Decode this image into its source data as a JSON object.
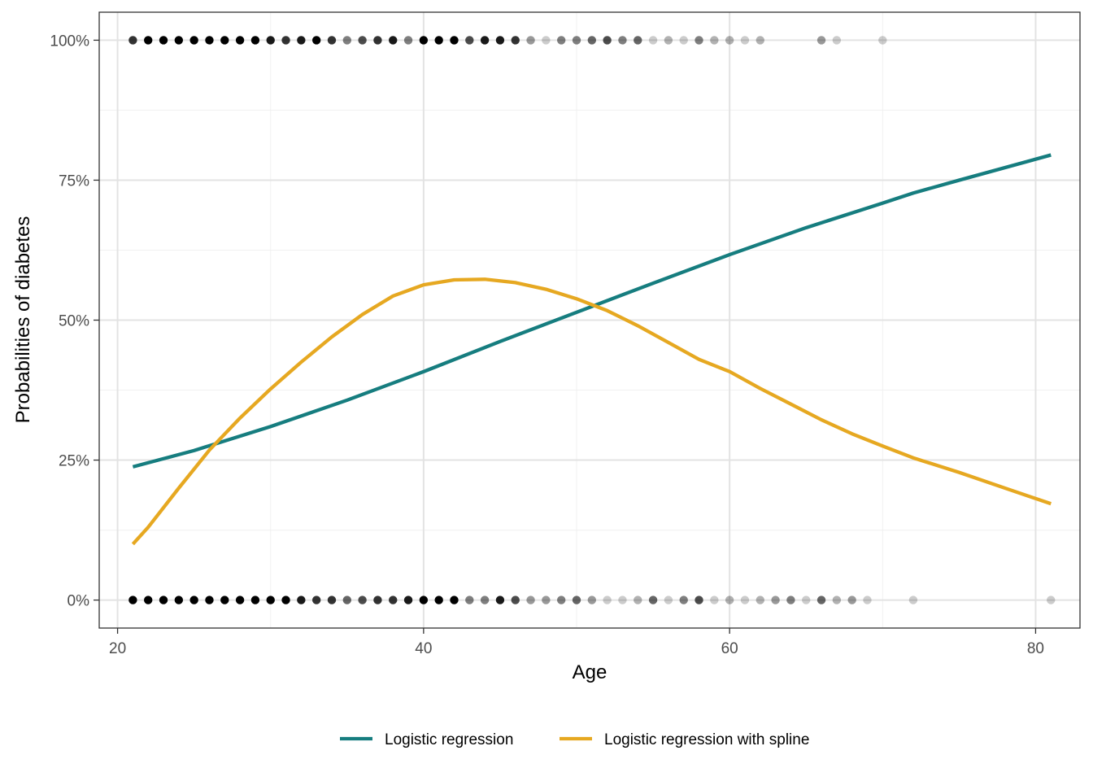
{
  "chart_data": {
    "type": "line",
    "title": "",
    "xlabel": "Age",
    "ylabel": "Probabilities of diabetes",
    "xlim": [
      18.8,
      82.9
    ],
    "ylim": [
      -0.05,
      1.05
    ],
    "x_ticks": [
      {
        "value": 20,
        "label": "20"
      },
      {
        "value": 40,
        "label": "40"
      },
      {
        "value": 60,
        "label": "60"
      },
      {
        "value": 80,
        "label": "80"
      }
    ],
    "x_minor_ticks": [
      30,
      50,
      70
    ],
    "y_ticks": [
      {
        "value": 0,
        "label": "0%"
      },
      {
        "value": 0.25,
        "label": "25%"
      },
      {
        "value": 0.5,
        "label": "50%"
      },
      {
        "value": 0.75,
        "label": "75%"
      },
      {
        "value": 1.0,
        "label": "100%"
      }
    ],
    "y_minor_ticks": [
      0.125,
      0.375,
      0.625,
      0.875
    ],
    "grid": true,
    "legend_position": "bottom",
    "series": [
      {
        "name": "Logistic regression",
        "color": "#167d7f",
        "x": [
          21,
          25,
          30,
          35,
          40,
          45,
          50,
          55,
          60,
          65,
          70,
          72,
          75,
          81
        ],
        "y": [
          0.238,
          0.267,
          0.31,
          0.357,
          0.408,
          0.462,
          0.514,
          0.566,
          0.617,
          0.665,
          0.709,
          0.727,
          0.75,
          0.795
        ]
      },
      {
        "name": "Logistic regression with spline",
        "color": "#e6a821",
        "x": [
          21,
          22,
          24,
          26,
          28,
          30,
          32,
          34,
          36,
          38,
          40,
          42,
          44,
          46,
          48,
          50,
          52,
          54,
          56,
          58,
          60,
          62,
          64,
          66,
          68,
          70,
          72,
          75,
          78,
          81
        ],
        "y": [
          0.1,
          0.13,
          0.2,
          0.268,
          0.325,
          0.377,
          0.425,
          0.47,
          0.51,
          0.543,
          0.563,
          0.572,
          0.573,
          0.567,
          0.555,
          0.538,
          0.517,
          0.49,
          0.46,
          0.43,
          0.408,
          0.378,
          0.35,
          0.322,
          0.297,
          0.275,
          0.254,
          0.228,
          0.2,
          0.172
        ]
      }
    ],
    "points_positive": {
      "y": 1,
      "color": "#000000",
      "x": [
        21,
        22,
        23,
        24,
        25,
        26,
        27,
        28,
        29,
        30,
        31,
        32,
        33,
        34,
        35,
        36,
        37,
        38,
        39,
        40,
        41,
        42,
        43,
        44,
        45,
        46,
        47,
        48,
        49,
        50,
        51,
        52,
        53,
        54,
        55,
        56,
        57,
        58,
        59,
        60,
        61,
        62,
        66,
        67,
        70
      ],
      "opacity": [
        0.8,
        1,
        1,
        1,
        1,
        1,
        1,
        1,
        1,
        0.9,
        0.8,
        0.9,
        1,
        0.8,
        0.5,
        0.7,
        0.8,
        0.9,
        0.5,
        1,
        1,
        1,
        0.7,
        0.9,
        0.9,
        0.8,
        0.4,
        0.2,
        0.5,
        0.5,
        0.6,
        0.7,
        0.5,
        0.6,
        0.2,
        0.3,
        0.2,
        0.5,
        0.3,
        0.3,
        0.2,
        0.3,
        0.4,
        0.2,
        0.2
      ]
    },
    "points_negative": {
      "y": 0,
      "color": "#000000",
      "x": [
        21,
        22,
        23,
        24,
        25,
        26,
        27,
        28,
        29,
        30,
        31,
        32,
        33,
        34,
        35,
        36,
        37,
        38,
        39,
        40,
        41,
        42,
        43,
        44,
        45,
        46,
        47,
        48,
        49,
        50,
        51,
        52,
        53,
        54,
        55,
        56,
        57,
        58,
        59,
        60,
        61,
        62,
        63,
        64,
        65,
        66,
        67,
        68,
        69,
        72,
        81
      ],
      "opacity": [
        1,
        1,
        1,
        1,
        1,
        1,
        1,
        1,
        1,
        1,
        1,
        0.9,
        0.8,
        0.8,
        0.6,
        0.7,
        0.8,
        0.8,
        0.9,
        1,
        1,
        1,
        0.5,
        0.5,
        0.9,
        0.7,
        0.4,
        0.4,
        0.5,
        0.6,
        0.4,
        0.2,
        0.2,
        0.3,
        0.6,
        0.2,
        0.5,
        0.7,
        0.2,
        0.3,
        0.2,
        0.3,
        0.4,
        0.5,
        0.2,
        0.6,
        0.3,
        0.4,
        0.2,
        0.2,
        0.2
      ]
    }
  }
}
